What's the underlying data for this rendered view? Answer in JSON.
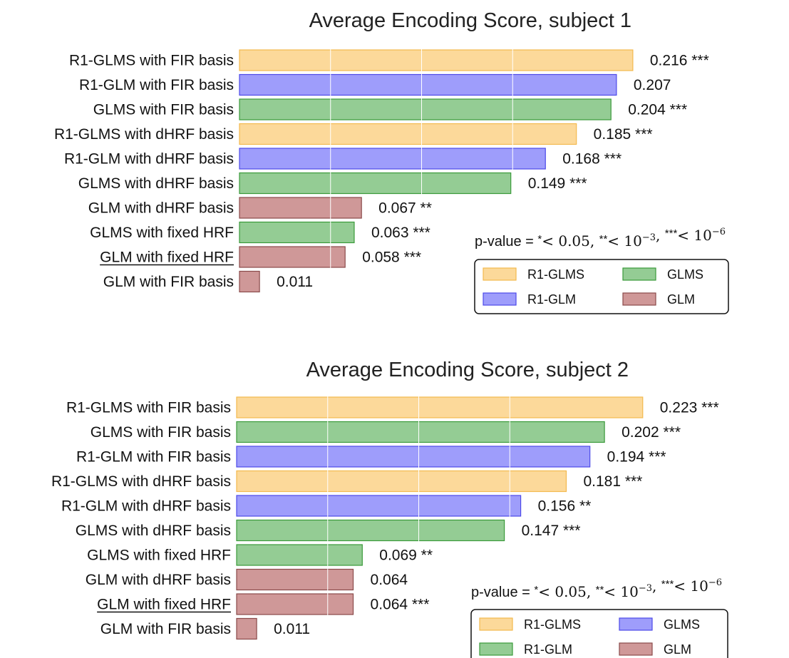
{
  "pvalue_legend": {
    "prefix": "p-value = ",
    "parts": [
      {
        "stars": "*",
        "rel": "< ",
        "base": "0.05",
        "exp": ""
      },
      {
        "stars": "**",
        "rel": "< ",
        "base": "10",
        "exp": "−3"
      },
      {
        "stars": "***",
        "rel": "< ",
        "base": "10",
        "exp": "−6"
      }
    ]
  },
  "colors": {
    "R1-GLMS": {
      "fill": "#fcd99a",
      "stroke": "#f3b94e"
    },
    "R1-GLM": {
      "fill": "#9e9dfb",
      "stroke": "#4d4ae8"
    },
    "GLMS": {
      "fill": "#94cc94",
      "stroke": "#3a9a3a"
    },
    "GLM": {
      "fill": "#cf9898",
      "stroke": "#8a4a4a"
    }
  },
  "chart_data": [
    {
      "type": "bar",
      "orientation": "horizontal",
      "title": "Average Encoding Score, subject 1",
      "categories": [
        "R1-GLMS with FIR basis",
        "R1-GLM with FIR basis",
        "GLMS with FIR basis",
        "R1-GLMS with dHRF basis",
        "R1-GLM with dHRF basis",
        "GLMS with dHRF basis",
        "GLM with dHRF basis",
        "GLMS with fixed HRF",
        "GLM with fixed HRF",
        "GLM with FIR basis"
      ],
      "underlined": [
        "GLM with fixed HRF"
      ],
      "values": [
        0.216,
        0.207,
        0.204,
        0.185,
        0.168,
        0.149,
        0.067,
        0.063,
        0.058,
        0.011
      ],
      "value_labels": [
        "0.216 ***",
        "0.207",
        "0.204 ***",
        "0.185 ***",
        "0.168 ***",
        "0.149 ***",
        "0.067 **",
        "0.063 ***",
        "0.058 ***",
        "0.011"
      ],
      "groups": [
        "R1-GLMS",
        "R1-GLM",
        "GLMS",
        "R1-GLMS",
        "R1-GLM",
        "GLMS",
        "GLM",
        "GLMS",
        "GLM",
        "GLM"
      ],
      "xlim": [
        0,
        0.23
      ],
      "grid": true,
      "legend": {
        "placement": "lower-right",
        "entries": [
          {
            "label": "R1-GLMS",
            "color_key": "R1-GLMS"
          },
          {
            "label": "GLMS",
            "color_key": "GLMS"
          },
          {
            "label": "R1-GLM",
            "color_key": "R1-GLM"
          },
          {
            "label": "GLM",
            "color_key": "GLM"
          }
        ]
      }
    },
    {
      "type": "bar",
      "orientation": "horizontal",
      "title": "Average Encoding Score, subject 2",
      "categories": [
        "R1-GLMS with FIR basis",
        "GLMS with FIR basis",
        "R1-GLM with FIR basis",
        "R1-GLMS with dHRF basis",
        "R1-GLM with dHRF basis",
        "GLMS with dHRF basis",
        "GLMS with fixed HRF",
        "GLM with dHRF basis",
        "GLM with fixed HRF",
        "GLM with FIR basis"
      ],
      "underlined": [
        "GLM with fixed HRF"
      ],
      "values": [
        0.223,
        0.202,
        0.194,
        0.181,
        0.156,
        0.147,
        0.069,
        0.064,
        0.064,
        0.011
      ],
      "value_labels": [
        "0.223 ***",
        "0.202 ***",
        "0.194 ***",
        "0.181 ***",
        "0.156 **",
        "0.147 ***",
        "0.069 **",
        "0.064",
        "0.064 ***",
        "0.011"
      ],
      "groups": [
        "R1-GLMS",
        "GLMS",
        "R1-GLM",
        "R1-GLMS",
        "R1-GLM",
        "GLMS",
        "GLMS",
        "GLM",
        "GLM",
        "GLM"
      ],
      "xlim": [
        0,
        0.23
      ],
      "grid": true,
      "legend": {
        "placement": "lower-right",
        "entries": [
          {
            "label": "R1-GLMS",
            "color_key": "R1-GLMS"
          },
          {
            "label": "GLMS",
            "color_key": "R1-GLM"
          },
          {
            "label": "R1-GLM",
            "color_key": "GLMS"
          },
          {
            "label": "GLM",
            "color_key": "GLM"
          }
        ]
      }
    }
  ]
}
